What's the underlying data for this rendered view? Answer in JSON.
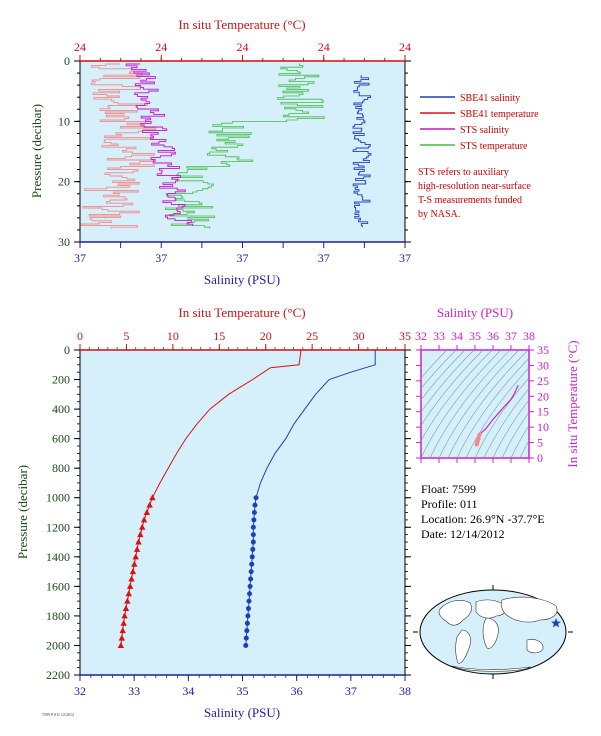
{
  "colors": {
    "plot_bg": "#d5f0fb",
    "sal_axis": "#1f1f9e",
    "temp_axis": "#cc1111",
    "sbe_sal": "#1f3fbf",
    "sbe_temp": "#dd1111",
    "sts_sal": "#cc11cc",
    "sts_temp": "#44bb44",
    "sts_temp_light": "#f28a8a",
    "pressure_axis": "#1a4a1a",
    "note": "#cc0000",
    "inset_axis": "#cc22cc"
  },
  "top_chart": {
    "title": "In situ Temperature (°C)",
    "top_ticks": [
      "24",
      "24",
      "24",
      "24",
      "24"
    ],
    "bottom_ticks": [
      "37",
      "37",
      "37",
      "37",
      "37",
      "37",
      "37",
      "37",
      "37"
    ],
    "xlabel": "Salinity (PSU)",
    "ylabel": "Pressure (decibar)",
    "y_ticks": [
      "0",
      "10",
      "20",
      "30"
    ]
  },
  "legend": {
    "items": [
      {
        "label": "SBE41 salinity",
        "color": "#1f3fbf"
      },
      {
        "label": "SBE41 temperature",
        "color": "#dd1111"
      },
      {
        "label": "STS salinity",
        "color": "#cc11cc"
      },
      {
        "label": "STS temperature",
        "color": "#44bb44"
      }
    ],
    "note_lines": [
      "STS refers to auxiliary",
      "high-resolution near-surface",
      "T-S measurements funded",
      "by NASA."
    ]
  },
  "main_chart": {
    "title": "In situ Temperature (°C)",
    "top_ticks": [
      "0",
      "5",
      "10",
      "15",
      "20",
      "25",
      "30",
      "35"
    ],
    "bottom_ticks": [
      "32",
      "33",
      "34",
      "35",
      "36",
      "37",
      "38"
    ],
    "xlabel": "Salinity (PSU)",
    "ylabel": "Pressure (decibar)",
    "y_ticks": [
      "0",
      "200",
      "400",
      "600",
      "800",
      "1000",
      "1200",
      "1400",
      "1600",
      "1800",
      "2000",
      "2200"
    ]
  },
  "inset": {
    "title": "Salinity (PSU)",
    "x_ticks": [
      "32",
      "33",
      "34",
      "35",
      "36",
      "37",
      "38"
    ],
    "y_ticks": [
      "0",
      "5",
      "10",
      "15",
      "20",
      "25",
      "30",
      "35"
    ],
    "ylabel": "In situ Temperature (°C)"
  },
  "info": {
    "float": "Float:  7599",
    "profile": "Profile:  011",
    "location": "Location:  26.9°N  -37.7°E",
    "date": "Date:  12/14/2012"
  },
  "footer_tiny": "7599 P 011 12/2012",
  "chart_data": [
    {
      "type": "line",
      "name_ref": "top_chart",
      "title": "In situ Temperature (°C)",
      "xlabel": "Salinity (PSU)",
      "ylabel": "Pressure (decibar)",
      "ylim": [
        30,
        0
      ],
      "series": [
        {
          "name": "SBE41 salinity"
        },
        {
          "name": "SBE41 temperature"
        },
        {
          "name": "STS salinity"
        },
        {
          "name": "STS temperature"
        }
      ]
    },
    {
      "type": "line",
      "name_ref": "main_chart",
      "title": "In situ Temperature (°C)",
      "xlabel": "Salinity (PSU)",
      "ylabel": "Pressure (decibar)",
      "xlim_salinity": [
        32,
        38
      ],
      "xlim_temperature": [
        0,
        35
      ],
      "ylim": [
        2200,
        0
      ],
      "series": [
        {
          "name": "SBE41 temperature",
          "axis": "temperature",
          "pressure": [
            0,
            100,
            120,
            200,
            300,
            400,
            500,
            600,
            700,
            800,
            900,
            1000,
            1050,
            1100,
            1150,
            1200,
            1250,
            1300,
            1350,
            1400,
            1450,
            1500,
            1550,
            1600,
            1650,
            1700,
            1750,
            1800,
            1850,
            1900,
            1950,
            2000
          ],
          "values": [
            23.8,
            23.6,
            20.5,
            18.6,
            16.0,
            14.0,
            12.6,
            11.4,
            10.4,
            9.5,
            8.6,
            7.8,
            7.5,
            7.2,
            6.9,
            6.7,
            6.5,
            6.3,
            6.15,
            6.0,
            5.85,
            5.7,
            5.55,
            5.4,
            5.25,
            5.1,
            4.95,
            4.8,
            4.7,
            4.6,
            4.5,
            4.4
          ],
          "marker_from_pressure": 1000
        },
        {
          "name": "SBE41 salinity",
          "axis": "salinity",
          "pressure": [
            0,
            100,
            150,
            200,
            300,
            400,
            500,
            600,
            700,
            800,
            900,
            1000,
            1050,
            1100,
            1150,
            1200,
            1250,
            1300,
            1350,
            1400,
            1450,
            1500,
            1550,
            1600,
            1650,
            1700,
            1750,
            1800,
            1850,
            1900,
            1950,
            2000
          ],
          "values": [
            37.45,
            37.45,
            37.0,
            36.6,
            36.35,
            36.15,
            35.95,
            35.8,
            35.6,
            35.45,
            35.33,
            35.25,
            35.23,
            35.22,
            35.21,
            35.2,
            35.2,
            35.2,
            35.19,
            35.18,
            35.17,
            35.16,
            35.15,
            35.14,
            35.13,
            35.12,
            35.11,
            35.1,
            35.09,
            35.08,
            35.07,
            35.06
          ],
          "marker_from_pressure": 1000
        }
      ]
    },
    {
      "type": "scatter",
      "name_ref": "inset",
      "xlabel": "Salinity (PSU)",
      "ylabel": "In situ Temperature (°C)",
      "xlim": [
        32,
        38
      ],
      "ylim": [
        0,
        35
      ],
      "series": [
        {
          "name": "T-S",
          "salinity": [
            35.1,
            35.12,
            35.15,
            35.2,
            35.25,
            35.4,
            35.6,
            35.8,
            36.0,
            36.3,
            36.6,
            37.0,
            37.2,
            37.4
          ],
          "temperature": [
            4.4,
            5.0,
            5.6,
            6.3,
            7.5,
            8.5,
            9.5,
            11.0,
            12.5,
            14.5,
            16.5,
            19.0,
            21.0,
            23.6
          ]
        }
      ]
    }
  ]
}
